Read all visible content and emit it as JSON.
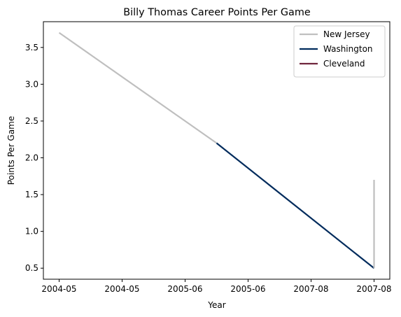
{
  "chart_data": {
    "type": "line",
    "title": "Billy Thomas  Career Points Per Game",
    "xlabel": "Year",
    "ylabel": "Points Per Game",
    "x_tick_labels": [
      "2004-05",
      "2004-05",
      "2005-06",
      "2005-06",
      "2007-08",
      "2007-08"
    ],
    "y_ticks": [
      0.5,
      1.0,
      1.5,
      2.0,
      2.5,
      3.0,
      3.5
    ],
    "y_tick_labels": [
      "0.5",
      "1.0",
      "1.5",
      "2.0",
      "2.5",
      "3.0",
      "3.5"
    ],
    "xlim": [
      -0.25,
      5.25
    ],
    "ylim": [
      0.35,
      3.85
    ],
    "grid": false,
    "legend_position": "top-right",
    "series": [
      {
        "name": "New Jersey",
        "color": "#bfbfbf",
        "points": [
          [
            0,
            3.7
          ],
          [
            2.5,
            2.2
          ]
        ]
      },
      {
        "name": "Washington",
        "color": "#002b5c",
        "points": [
          [
            2.5,
            2.2
          ],
          [
            5,
            0.5
          ]
        ]
      },
      {
        "name": "Cleveland",
        "color": "#6f263d",
        "points": []
      },
      {
        "name": "New Jersey",
        "color": "#bfbfbf",
        "points": [
          [
            5,
            0.5
          ],
          [
            5,
            1.7
          ]
        ],
        "in_legend": false
      }
    ]
  }
}
